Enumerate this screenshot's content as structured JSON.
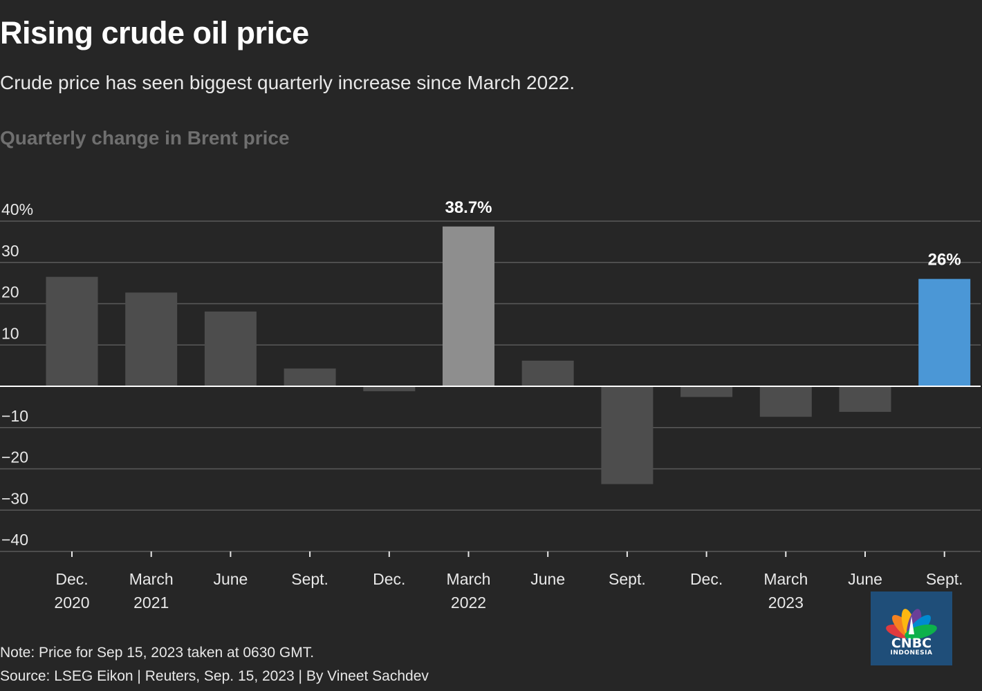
{
  "header": {
    "title": "Rising crude oil price",
    "subtitle": "Crude price has seen biggest quarterly increase since March 2022."
  },
  "chart_label": "Quarterly change in Brent price",
  "chart_data": {
    "type": "bar",
    "title": "Quarterly change in Brent price",
    "categories": [
      [
        "Dec.",
        "2020"
      ],
      [
        "March",
        "2021"
      ],
      [
        "June",
        ""
      ],
      [
        "Sept.",
        ""
      ],
      [
        "Dec.",
        ""
      ],
      [
        "March",
        "2022"
      ],
      [
        "June",
        ""
      ],
      [
        "Sept.",
        ""
      ],
      [
        "Dec.",
        ""
      ],
      [
        "March",
        "2023"
      ],
      [
        "June",
        ""
      ],
      [
        "Sept.",
        ""
      ]
    ],
    "values": [
      26.5,
      22.7,
      18.1,
      4.3,
      -1.2,
      38.7,
      6.2,
      -23.7,
      -2.6,
      -7.4,
      -6.2,
      26.0
    ],
    "highlight": [
      {
        "index": 5,
        "color": "#8e8e8e",
        "label": "38.7%"
      },
      {
        "index": 11,
        "color": "#4b97d6",
        "label": "26%"
      }
    ],
    "default_color": "#4d4d4d",
    "ylim": [
      -40,
      40
    ],
    "yticks": [
      {
        "value": 40,
        "label": "40%"
      },
      {
        "value": 30,
        "label": "30"
      },
      {
        "value": 20,
        "label": "20"
      },
      {
        "value": 10,
        "label": "10"
      },
      {
        "value": -10,
        "label": "−10"
      },
      {
        "value": -20,
        "label": "−20"
      },
      {
        "value": -30,
        "label": "−30"
      },
      {
        "value": -40,
        "label": "−40"
      }
    ],
    "grid": true,
    "xlabel": "",
    "ylabel": ""
  },
  "footer": {
    "note": "Note: Price for Sep 15, 2023 taken at 0630 GMT.",
    "source": "Source: LSEG Eikon | Reuters, Sep. 15, 2023 | By Vineet Sachdev"
  },
  "logo": {
    "name": "CNBC",
    "sub": "INDONESIA",
    "icon": "peacock-icon"
  }
}
